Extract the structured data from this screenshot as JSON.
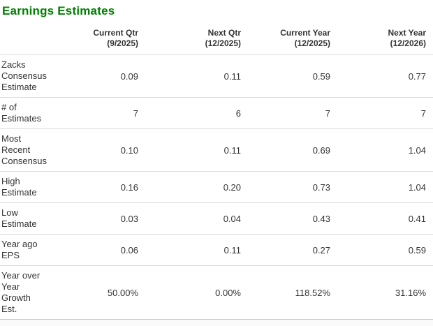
{
  "page": {
    "title": "Earnings Estimates"
  },
  "colors": {
    "title_green": "#008000",
    "text": "#333333",
    "divider": "#dddddd"
  },
  "table": {
    "columns": [
      {
        "label": "Current Qtr",
        "period": "(9/2025)"
      },
      {
        "label": "Next Qtr",
        "period": "(12/2025)"
      },
      {
        "label": "Current Year",
        "period": "(12/2025)"
      },
      {
        "label": "Next Year",
        "period": "(12/2026)"
      }
    ],
    "rows": [
      {
        "label": "Zacks\nConsensus\nEstimate",
        "values": [
          "0.09",
          "0.11",
          "0.59",
          "0.77"
        ]
      },
      {
        "label": "# of\nEstimates",
        "values": [
          "7",
          "6",
          "7",
          "7"
        ]
      },
      {
        "label": "Most\nRecent\nConsensus",
        "values": [
          "0.10",
          "0.11",
          "0.69",
          "1.04"
        ]
      },
      {
        "label": "High\nEstimate",
        "values": [
          "0.16",
          "0.20",
          "0.73",
          "1.04"
        ]
      },
      {
        "label": "Low\nEstimate",
        "values": [
          "0.03",
          "0.04",
          "0.43",
          "0.41"
        ]
      },
      {
        "label": "Year ago\nEPS",
        "values": [
          "0.06",
          "0.11",
          "0.27",
          "0.59"
        ]
      },
      {
        "label": "Year over\nYear\nGrowth\nEst.",
        "values": [
          "50.00%",
          "0.00%",
          "118.52%",
          "31.16%"
        ]
      }
    ]
  }
}
